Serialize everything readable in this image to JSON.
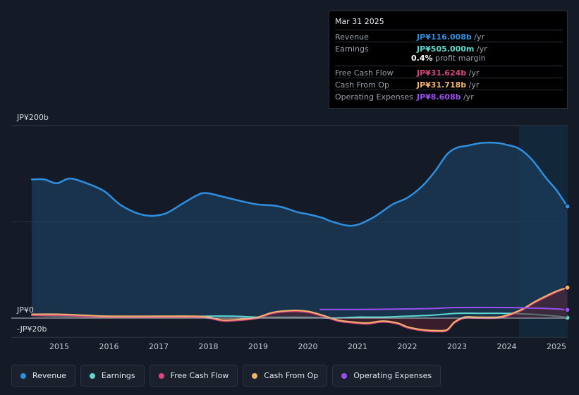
{
  "chart_data": {
    "type": "area",
    "ylabels": {
      "top": "JP¥200b",
      "zero": "JP¥0",
      "bottom": "-JP¥20b"
    },
    "ylim": [
      -20,
      200
    ],
    "x_ticks": [
      "2015",
      "2016",
      "2017",
      "2018",
      "2019",
      "2020",
      "2021",
      "2022",
      "2023",
      "2024",
      "2025"
    ],
    "highlight_start": 2024.25,
    "series": [
      {
        "name": "Revenue",
        "color": "#2e8fe0",
        "x": [
          2014.45,
          2014.7,
          2014.95,
          2015.2,
          2015.5,
          2015.9,
          2016.25,
          2016.7,
          2017.1,
          2017.45,
          2017.75,
          2017.95,
          2018.3,
          2018.7,
          2019.0,
          2019.3,
          2019.5,
          2019.8,
          2020.0,
          2020.3,
          2020.5,
          2020.9,
          2021.3,
          2021.7,
          2022.0,
          2022.3,
          2022.55,
          2022.8,
          2023.0,
          2023.2,
          2023.5,
          2023.8,
          2024.0,
          2024.25,
          2024.5,
          2024.8,
          2025.0,
          2025.22
        ],
        "values": [
          144,
          144,
          140,
          145,
          141,
          132,
          117,
          107,
          108,
          118,
          127,
          130,
          126,
          121,
          118,
          117,
          115,
          110,
          108,
          104,
          100,
          96,
          104,
          118,
          125,
          137,
          152,
          170,
          177,
          179,
          182,
          182,
          180,
          176,
          165,
          145,
          133,
          116
        ]
      },
      {
        "name": "Earnings",
        "color": "#5fd9cf",
        "x": [
          2014.45,
          2015.0,
          2016.0,
          2017.0,
          2018.0,
          2018.5,
          2019.0,
          2019.5,
          2020.0,
          2020.5,
          2021.0,
          2021.5,
          2022.0,
          2022.5,
          2023.0,
          2023.5,
          2024.0,
          2024.5,
          2025.0,
          2025.22
        ],
        "values": [
          3,
          2,
          1,
          1,
          2,
          2,
          1,
          1,
          1,
          0,
          1,
          1,
          2,
          3,
          5,
          5,
          5,
          4,
          2,
          0.5
        ]
      },
      {
        "name": "Free Cash Flow",
        "color": "#d9467d",
        "fill": "#5a1f30",
        "x": [
          2014.45,
          2015.0,
          2015.5,
          2016.0,
          2017.0,
          2017.7,
          2018.0,
          2018.3,
          2018.7,
          2019.0,
          2019.3,
          2019.7,
          2020.0,
          2020.3,
          2020.6,
          2020.9,
          2021.2,
          2021.5,
          2021.8,
          2022.0,
          2022.3,
          2022.6,
          2022.8,
          2022.95,
          2023.15,
          2023.4,
          2023.8,
          2024.0,
          2024.3,
          2024.6,
          2025.0,
          2025.22
        ],
        "values": [
          3,
          3,
          2,
          1,
          1,
          1,
          0,
          -3,
          -2,
          0,
          5,
          7,
          6,
          2,
          -3,
          -5,
          -6,
          -4,
          -6,
          -10,
          -13,
          -14,
          -13,
          -5,
          0,
          0,
          0,
          2,
          8,
          17,
          27,
          31.6
        ]
      },
      {
        "name": "Cash From Op",
        "color": "#f2b36a",
        "x": [
          2014.45,
          2015.0,
          2015.5,
          2016.0,
          2017.0,
          2017.7,
          2018.0,
          2018.3,
          2018.7,
          2019.0,
          2019.3,
          2019.7,
          2020.0,
          2020.3,
          2020.6,
          2020.9,
          2021.2,
          2021.5,
          2021.8,
          2022.0,
          2022.3,
          2022.6,
          2022.8,
          2022.95,
          2023.15,
          2023.4,
          2023.8,
          2024.0,
          2024.3,
          2024.6,
          2025.0,
          2025.22
        ],
        "values": [
          4,
          4,
          3,
          2,
          2,
          2,
          1,
          -2,
          -1,
          1,
          6,
          8,
          7,
          3,
          -2,
          -4,
          -5,
          -3,
          -5,
          -9,
          -12,
          -13,
          -12,
          -4,
          1,
          1,
          1,
          3,
          9,
          18,
          28,
          31.7
        ]
      },
      {
        "name": "Operating Expenses",
        "color": "#9b4ff0",
        "x": [
          2020.25,
          2021.0,
          2022.0,
          2022.5,
          2023.0,
          2024.0,
          2024.5,
          2025.0,
          2025.22
        ],
        "values": [
          9,
          9,
          9.5,
          10,
          11,
          11,
          10.5,
          9.5,
          8.6
        ]
      }
    ]
  },
  "tooltip": {
    "date": "Mar 31 2025",
    "rows": [
      {
        "label": "Revenue",
        "value": "JP¥116.008b",
        "unit": " /yr",
        "color": "#2e8fe0"
      },
      {
        "label": "Earnings",
        "value": "JP¥505.000m",
        "unit": " /yr",
        "color": "#5fd9cf"
      },
      {
        "label": "Free Cash Flow",
        "value": "JP¥31.624b",
        "unit": " /yr",
        "color": "#d9467d"
      },
      {
        "label": "Cash From Op",
        "value": "JP¥31.718b",
        "unit": " /yr",
        "color": "#f2b36a"
      },
      {
        "label": "Operating Expenses",
        "value": "JP¥8.608b",
        "unit": " /yr",
        "color": "#9b4ff0"
      }
    ],
    "margin_value": "0.4%",
    "margin_label": " profit margin"
  },
  "legend": [
    {
      "label": "Revenue",
      "color": "#2e8fe0"
    },
    {
      "label": "Earnings",
      "color": "#5fd9cf"
    },
    {
      "label": "Free Cash Flow",
      "color": "#d9467d"
    },
    {
      "label": "Cash From Op",
      "color": "#f2b36a"
    },
    {
      "label": "Operating Expenses",
      "color": "#9b4ff0"
    }
  ]
}
